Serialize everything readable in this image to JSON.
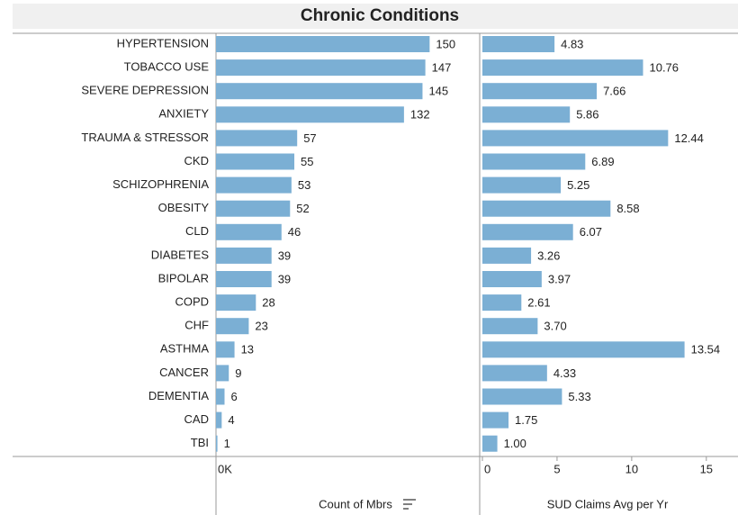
{
  "title": "Chronic Conditions",
  "chart_data": [
    {
      "type": "bar",
      "orientation": "horizontal",
      "x_label": "Count of Mbrs",
      "color": "#7bafd4",
      "categories": [
        "HYPERTENSION",
        "TOBACCO USE",
        "SEVERE DEPRESSION",
        "ANXIETY",
        "TRAUMA & STRESSOR",
        "CKD",
        "SCHIZOPHRENIA",
        "OBESITY",
        "CLD",
        "DIABETES",
        "BIPOLAR",
        "COPD",
        "CHF",
        "ASTHMA",
        "CANCER",
        "DEMENTIA",
        "CAD",
        "TBI"
      ],
      "values": [
        150,
        147,
        145,
        132,
        57,
        55,
        53,
        52,
        46,
        39,
        39,
        28,
        23,
        13,
        9,
        6,
        4,
        1
      ],
      "xlim": [
        0,
        182
      ],
      "xticks": [
        {
          "value": 0,
          "label": "0K"
        }
      ]
    },
    {
      "type": "bar",
      "orientation": "horizontal",
      "x_label": "SUD Claims Avg per Yr",
      "color": "#7bafd4",
      "values": [
        4.83,
        10.76,
        7.66,
        5.86,
        12.44,
        6.89,
        5.25,
        8.58,
        6.07,
        3.26,
        3.97,
        2.61,
        3.7,
        13.54,
        4.33,
        5.33,
        1.75,
        1
      ],
      "value_labels": [
        "4.83",
        "10.76",
        "7.66",
        "5.86",
        "12.44",
        "6.89",
        "5.25",
        "8.58",
        "6.07",
        "3.26",
        "3.97",
        "2.61",
        "3.70",
        "13.54",
        "4.33",
        "5.33",
        "1.75",
        "1.00"
      ],
      "xlim": [
        0,
        17
      ],
      "xticks": [
        0,
        5,
        10,
        15
      ]
    }
  ]
}
